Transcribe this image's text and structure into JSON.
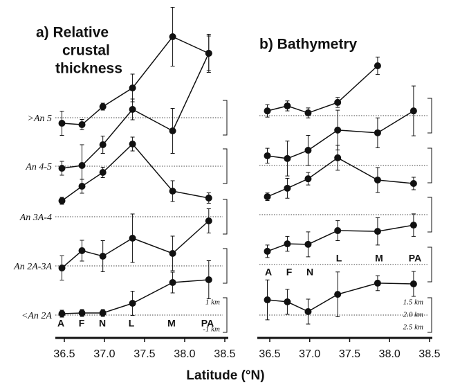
{
  "chart_data": [
    {
      "type": "line",
      "title_lines": [
        "a) Relative",
        "crustal",
        "thickness"
      ],
      "xlabel": "Latitude (°N)",
      "x": [
        36.47,
        36.72,
        36.98,
        37.35,
        37.85,
        38.3
      ],
      "xlim": [
        36.4,
        38.5
      ],
      "xticks": [
        36.5,
        {
          "value": 37,
          "label": "37.0"
        },
        37.5,
        {
          "value": 38,
          "label": "38.0"
        },
        38.5
      ],
      "segment_labels": [
        "A",
        "F",
        "N",
        "L",
        "M",
        "PA"
      ],
      "scale_labels": [
        "1 km",
        "-1 km"
      ],
      "color": "#111111",
      "series": [
        {
          "name": ">An 5",
          "values": [
            -0.32,
            -0.4,
            0.64,
            1.72,
            4.68,
            3.72
          ],
          "errors": [
            0.7,
            0.3,
            0.2,
            0.8,
            1.7,
            1.1
          ]
        },
        {
          "name": "An 4-5",
          "values": [
            -0.12,
            0.04,
            1.24,
            3.28,
            2.04,
            6.52
          ],
          "errors": [
            0.4,
            1.2,
            0.5,
            0.6,
            1.3,
            1.0
          ]
        },
        {
          "name": "An 3A-4",
          "values": [
            0.92,
            1.76,
            2.56,
            4.2,
            1.48,
            1.08
          ],
          "errors": [
            0.2,
            0.4,
            0.3,
            0.4,
            0.6,
            0.3
          ]
        },
        {
          "name": "An 2A-3A",
          "values": [
            -0.12,
            0.88,
            0.56,
            1.6,
            0.72,
            2.6
          ],
          "errors": [
            0.7,
            0.6,
            0.9,
            1.4,
            1.0,
            0.7
          ]
        },
        {
          "name": "<An 2A",
          "values": [
            0.08,
            0.12,
            0.12,
            0.68,
            1.88,
            2.04
          ],
          "errors": [
            0.2,
            0.2,
            0.2,
            0.7,
            0.6,
            1.1
          ]
        }
      ]
    },
    {
      "type": "line",
      "title_lines": [
        "b) Bathymetry"
      ],
      "x": [
        36.47,
        36.72,
        36.98,
        37.35,
        37.85,
        38.3
      ],
      "xlim": [
        36.4,
        38.5
      ],
      "xticks": [
        36.5,
        {
          "value": 37,
          "label": "37.0"
        },
        37.5,
        {
          "value": 38,
          "label": "38.0"
        },
        38.5
      ],
      "segment_labels": [
        "A",
        "F",
        "N",
        "L",
        "M",
        "PA"
      ],
      "scale_labels": [
        "1.5 km",
        "2.0 km",
        "2.5 km"
      ],
      "color": "#111111",
      "series": [
        {
          "values": [
            0.19,
            0.39,
            0.11,
            0.53,
            2.0,
            null
          ],
          "errors": [
            0.25,
            0.2,
            0.2,
            0.2,
            0.35,
            null
          ]
        },
        {
          "values": [
            0.39,
            0.28,
            0.61,
            1.42,
            1.31,
            2.19
          ],
          "errors": [
            0.3,
            0.7,
            0.6,
            0.8,
            0.6,
            1.0
          ]
        },
        {
          "values": [
            0.72,
            1.06,
            1.44,
            2.28,
            1.39,
            1.25
          ],
          "errors": [
            0.15,
            0.4,
            0.25,
            0.5,
            0.5,
            0.25
          ]
        },
        {
          "values": [
            0.53,
            0.83,
            0.81,
            1.36,
            1.33,
            1.58
          ],
          "errors": [
            0.25,
            0.3,
            0.5,
            0.4,
            0.55,
            0.45
          ]
        },
        {
          "values": [
            0.61,
            0.53,
            0.14,
            0.83,
            1.28,
            1.25
          ],
          "errors": [
            0.8,
            0.5,
            0.5,
            0.9,
            0.3,
            0.5
          ]
        }
      ]
    }
  ]
}
